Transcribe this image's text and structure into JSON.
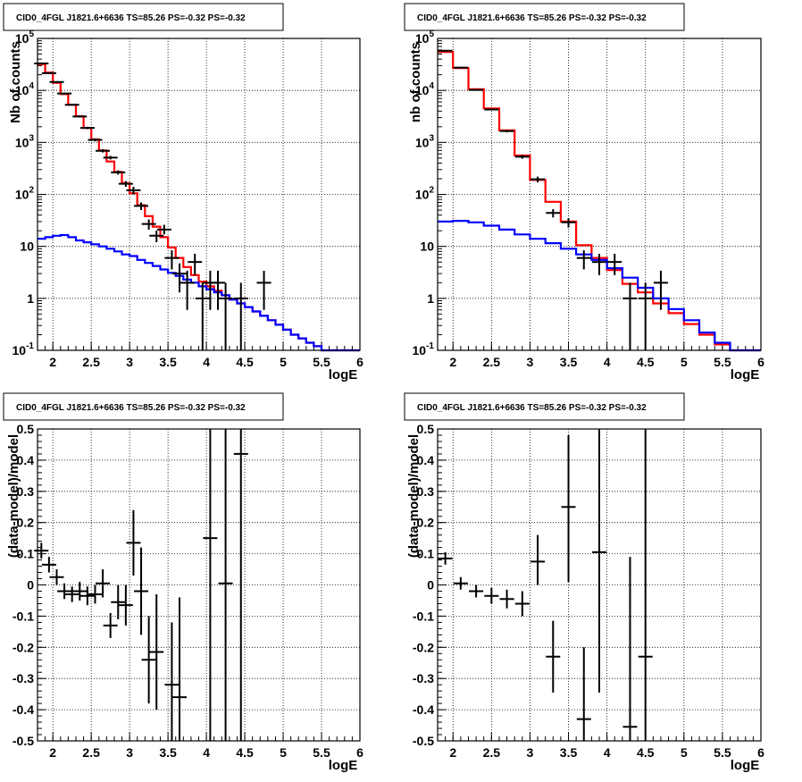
{
  "colors": {
    "data": "#000000",
    "total_model": "#ff0000",
    "component_model": "#0000ff",
    "grid": "#000000",
    "background": "#ffffff"
  },
  "chart_data": [
    {
      "type": "scatter",
      "panel": "top-left",
      "title": "CID0_4FGL J1821.6+6636 TS=85.26 PS=-0.32 PS=-0.32",
      "xlabel": "logE",
      "ylabel": "Nb of counts",
      "xlim": [
        1.8,
        6.0
      ],
      "ylim": [
        0.1,
        100000
      ],
      "yscale": "log",
      "grid": true,
      "x_ticks": [
        "2",
        "2.5",
        "3",
        "3.5",
        "4",
        "4.5",
        "5",
        "5.5",
        "6"
      ],
      "y_ticks": [
        "10^-1",
        "1",
        "10",
        "10^2",
        "10^3",
        "10^4",
        "10^5"
      ],
      "series": [
        {
          "role": "total_model",
          "style": "step",
          "edges": [
            1.8,
            1.9,
            2.0,
            2.1,
            2.2,
            2.3,
            2.4,
            2.5,
            2.6,
            2.7,
            2.8,
            2.9,
            3.0,
            3.1,
            3.2,
            3.3,
            3.4,
            3.5,
            3.6,
            3.7,
            3.8,
            3.9,
            4.0,
            4.1,
            4.2,
            4.3,
            4.4,
            4.5,
            4.6,
            4.7,
            4.8,
            4.9,
            5.0,
            5.1,
            5.2,
            5.3,
            5.4,
            5.5,
            5.6,
            5.7,
            5.8,
            5.9,
            6.0
          ],
          "values": [
            32000,
            22000,
            14000,
            8500,
            5300,
            3200,
            1900,
            1150,
            700,
            430,
            270,
            165,
            105,
            62,
            38,
            24,
            15,
            9.5,
            6.0,
            4.0,
            2.8,
            2.1,
            1.7,
            1.4,
            1.15,
            0.95,
            0.8,
            0.68,
            0.56,
            0.46,
            0.38,
            0.31,
            0.25,
            0.2,
            0.17,
            0.14,
            0.12,
            0.1,
            0.1,
            0.1,
            0.1,
            0.1
          ]
        },
        {
          "role": "component_model",
          "style": "step",
          "edges": [
            1.8,
            1.9,
            2.0,
            2.1,
            2.2,
            2.3,
            2.4,
            2.5,
            2.6,
            2.7,
            2.8,
            2.9,
            3.0,
            3.1,
            3.2,
            3.3,
            3.4,
            3.5,
            3.6,
            3.7,
            3.8,
            3.9,
            4.0,
            4.1,
            4.2,
            4.3,
            4.4,
            4.5,
            4.6,
            4.7,
            4.8,
            4.9,
            5.0,
            5.1,
            5.2,
            5.3,
            5.4,
            5.5,
            5.6,
            5.7,
            5.8,
            5.9,
            6.0
          ],
          "values": [
            14,
            15,
            16,
            16.5,
            15,
            13,
            12,
            11,
            10,
            9,
            8,
            7,
            6.5,
            5.5,
            4.8,
            4.2,
            3.6,
            3.1,
            2.7,
            2.3,
            2.0,
            1.7,
            1.5,
            1.3,
            1.15,
            0.95,
            0.8,
            0.68,
            0.56,
            0.46,
            0.38,
            0.31,
            0.25,
            0.2,
            0.17,
            0.14,
            0.12,
            0.1,
            0.1,
            0.1,
            0.1,
            0.1
          ]
        },
        {
          "role": "data",
          "style": "errorbar",
          "points": [
            {
              "x": 1.85,
              "y": 33000,
              "lo": 32000,
              "hi": 34000
            },
            {
              "x": 1.95,
              "y": 21500,
              "lo": 20800,
              "hi": 22200
            },
            {
              "x": 2.05,
              "y": 14500,
              "lo": 14000,
              "hi": 15000
            },
            {
              "x": 2.15,
              "y": 8700,
              "lo": 8400,
              "hi": 9000
            },
            {
              "x": 2.25,
              "y": 5300,
              "lo": 5100,
              "hi": 5500
            },
            {
              "x": 2.35,
              "y": 3150,
              "lo": 3000,
              "hi": 3300
            },
            {
              "x": 2.45,
              "y": 1900,
              "lo": 1800,
              "hi": 2000
            },
            {
              "x": 2.55,
              "y": 1120,
              "lo": 1050,
              "hi": 1190
            },
            {
              "x": 2.65,
              "y": 690,
              "lo": 640,
              "hi": 740
            },
            {
              "x": 2.75,
              "y": 510,
              "lo": 470,
              "hi": 550
            },
            {
              "x": 2.85,
              "y": 265,
              "lo": 240,
              "hi": 290
            },
            {
              "x": 2.95,
              "y": 160,
              "lo": 140,
              "hi": 180
            },
            {
              "x": 3.05,
              "y": 120,
              "lo": 100,
              "hi": 140
            },
            {
              "x": 3.15,
              "y": 60,
              "lo": 50,
              "hi": 70
            },
            {
              "x": 3.25,
              "y": 27,
              "lo": 21,
              "hi": 33
            },
            {
              "x": 3.35,
              "y": 16,
              "lo": 12,
              "hi": 20
            },
            {
              "x": 3.45,
              "y": 21,
              "lo": 17,
              "hi": 26
            },
            {
              "x": 3.55,
              "y": 6,
              "lo": 3.6,
              "hi": 8.4
            },
            {
              "x": 3.65,
              "y": 3,
              "lo": 1.3,
              "hi": 4.7
            },
            {
              "x": 3.75,
              "y": 2,
              "lo": 0.6,
              "hi": 3.4
            },
            {
              "x": 3.85,
              "y": 5,
              "lo": 2.8,
              "hi": 7.2
            },
            {
              "x": 3.95,
              "y": 1,
              "lo": 0.1,
              "hi": 2.0
            },
            {
              "x": 4.05,
              "y": 2,
              "lo": 0.6,
              "hi": 3.4
            },
            {
              "x": 4.15,
              "y": 2,
              "lo": 0.6,
              "hi": 3.4
            },
            {
              "x": 4.25,
              "y": 1,
              "lo": 0.1,
              "hi": 2.0
            },
            {
              "x": 4.45,
              "y": 1,
              "lo": 0.1,
              "hi": 2.0
            },
            {
              "x": 4.75,
              "y": 2,
              "lo": 0.6,
              "hi": 3.4
            }
          ]
        }
      ]
    },
    {
      "type": "scatter",
      "panel": "top-right",
      "title": "CID0_4FGL J1821.6+6636 TS=85.26 PS=-0.32 PS=-0.32",
      "xlabel": "logE",
      "ylabel": "nb of counts",
      "xlim": [
        1.8,
        6.0
      ],
      "ylim": [
        0.1,
        100000
      ],
      "yscale": "log",
      "grid": true,
      "x_ticks": [
        "2",
        "2.5",
        "3",
        "3.5",
        "4",
        "4.5",
        "5",
        "5.5",
        "6"
      ],
      "y_ticks": [
        "10^-1",
        "1",
        "10",
        "10^2",
        "10^3",
        "10^4",
        "10^5"
      ],
      "series": [
        {
          "role": "total_model",
          "style": "step",
          "edges": [
            1.8,
            2.0,
            2.2,
            2.4,
            2.6,
            2.8,
            3.0,
            3.2,
            3.4,
            3.6,
            3.8,
            4.0,
            4.2,
            4.4,
            4.6,
            4.8,
            5.0,
            5.2,
            5.4,
            5.6,
            5.8,
            6.0
          ],
          "values": [
            55000,
            27000,
            10500,
            4500,
            1700,
            560,
            190,
            72,
            30,
            10.5,
            6.0,
            3.5,
            1.9,
            1.3,
            0.8,
            0.52,
            0.32,
            0.2,
            0.13,
            0.1,
            0.1
          ]
        },
        {
          "role": "component_model",
          "style": "step",
          "edges": [
            1.8,
            2.0,
            2.2,
            2.4,
            2.6,
            2.8,
            3.0,
            3.2,
            3.4,
            3.6,
            3.8,
            4.0,
            4.2,
            4.4,
            4.6,
            4.8,
            5.0,
            5.2,
            5.4,
            5.6,
            5.8,
            6.0
          ],
          "values": [
            30,
            31,
            29,
            25,
            21,
            17,
            14,
            11.5,
            9.0,
            7.0,
            5.5,
            3.8,
            2.5,
            1.6,
            1.0,
            0.62,
            0.38,
            0.22,
            0.14,
            0.1,
            0.1
          ]
        },
        {
          "role": "data",
          "style": "errorbar",
          "points": [
            {
              "x": 1.9,
              "y": 58000,
              "lo": 57000,
              "hi": 59000
            },
            {
              "x": 2.1,
              "y": 27500,
              "lo": 26800,
              "hi": 28200
            },
            {
              "x": 2.3,
              "y": 10200,
              "lo": 9900,
              "hi": 10500
            },
            {
              "x": 2.5,
              "y": 4300,
              "lo": 4150,
              "hi": 4450
            },
            {
              "x": 2.7,
              "y": 1650,
              "lo": 1560,
              "hi": 1740
            },
            {
              "x": 2.9,
              "y": 530,
              "lo": 485,
              "hi": 575
            },
            {
              "x": 3.1,
              "y": 195,
              "lo": 170,
              "hi": 220
            },
            {
              "x": 3.3,
              "y": 44,
              "lo": 36,
              "hi": 52
            },
            {
              "x": 3.5,
              "y": 29,
              "lo": 23,
              "hi": 35
            },
            {
              "x": 3.7,
              "y": 6,
              "lo": 3.6,
              "hi": 8.4
            },
            {
              "x": 3.9,
              "y": 5,
              "lo": 2.8,
              "hi": 7.2
            },
            {
              "x": 4.1,
              "y": 5,
              "lo": 2.8,
              "hi": 7.2
            },
            {
              "x": 4.3,
              "y": 1,
              "lo": 0.1,
              "hi": 2.0
            },
            {
              "x": 4.5,
              "y": 1,
              "lo": 0.1,
              "hi": 2.0
            },
            {
              "x": 4.7,
              "y": 2,
              "lo": 0.6,
              "hi": 3.4
            }
          ]
        }
      ]
    },
    {
      "type": "scatter",
      "panel": "bottom-left",
      "title": "CID0_4FGL J1821.6+6636 TS=85.26 PS=-0.32 PS=-0.32",
      "xlabel": "logE",
      "ylabel": "(data-model)/model",
      "xlim": [
        1.8,
        6.0
      ],
      "ylim": [
        -0.5,
        0.5
      ],
      "yscale": "linear",
      "grid": true,
      "x_ticks": [
        "2",
        "2.5",
        "3",
        "3.5",
        "4",
        "4.5",
        "5",
        "5.5",
        "6"
      ],
      "y_ticks": [
        "-0.5",
        "-0.4",
        "-0.3",
        "-0.2",
        "-0.1",
        "0",
        "0.1",
        "0.2",
        "0.3",
        "0.4",
        "0.5"
      ],
      "series": [
        {
          "role": "data",
          "style": "errorbar",
          "points": [
            {
              "x": 1.85,
              "y": 0.11,
              "lo": 0.085,
              "hi": 0.135
            },
            {
              "x": 1.95,
              "y": 0.065,
              "lo": 0.04,
              "hi": 0.09
            },
            {
              "x": 2.05,
              "y": 0.025,
              "lo": 0.0,
              "hi": 0.05
            },
            {
              "x": 2.15,
              "y": -0.02,
              "lo": -0.045,
              "hi": 0.005
            },
            {
              "x": 2.25,
              "y": -0.03,
              "lo": -0.055,
              "hi": -0.005
            },
            {
              "x": 2.35,
              "y": -0.02,
              "lo": -0.05,
              "hi": 0.01
            },
            {
              "x": 2.45,
              "y": -0.035,
              "lo": -0.065,
              "hi": -0.005
            },
            {
              "x": 2.55,
              "y": -0.03,
              "lo": -0.06,
              "hi": 0.0
            },
            {
              "x": 2.65,
              "y": 0.005,
              "lo": -0.04,
              "hi": 0.05
            },
            {
              "x": 2.75,
              "y": -0.13,
              "lo": -0.17,
              "hi": -0.09
            },
            {
              "x": 2.85,
              "y": -0.055,
              "lo": -0.11,
              "hi": 0.0
            },
            {
              "x": 2.95,
              "y": -0.065,
              "lo": -0.13,
              "hi": 0.0
            },
            {
              "x": 3.05,
              "y": 0.135,
              "lo": 0.03,
              "hi": 0.24
            },
            {
              "x": 3.15,
              "y": -0.02,
              "lo": -0.16,
              "hi": 0.12
            },
            {
              "x": 3.25,
              "y": -0.24,
              "lo": -0.38,
              "hi": -0.1
            },
            {
              "x": 3.35,
              "y": -0.215,
              "lo": -0.4,
              "hi": -0.03
            },
            {
              "x": 3.55,
              "y": -0.32,
              "lo": -0.5,
              "hi": -0.12
            },
            {
              "x": 3.65,
              "y": -0.36,
              "lo": -0.5,
              "hi": -0.04
            },
            {
              "x": 4.05,
              "y": 0.15,
              "lo": -0.5,
              "hi": 0.5
            },
            {
              "x": 4.25,
              "y": 0.005,
              "lo": -0.5,
              "hi": 0.5
            },
            {
              "x": 4.45,
              "y": 0.42,
              "lo": -0.5,
              "hi": 0.5
            }
          ]
        }
      ]
    },
    {
      "type": "scatter",
      "panel": "bottom-right",
      "title": "CID0_4FGL J1821.6+6636 TS=85.26 PS=-0.32 PS=-0.32",
      "xlabel": "logE",
      "ylabel": "(data-model)/model",
      "xlim": [
        1.8,
        6.0
      ],
      "ylim": [
        -0.5,
        0.5
      ],
      "yscale": "linear",
      "grid": true,
      "x_ticks": [
        "2",
        "2.5",
        "3",
        "3.5",
        "4",
        "4.5",
        "5",
        "5.5",
        "6"
      ],
      "y_ticks": [
        "-0.5",
        "-0.4",
        "-0.3",
        "-0.2",
        "-0.1",
        "0",
        "0.1",
        "0.2",
        "0.3",
        "0.4",
        "0.5"
      ],
      "series": [
        {
          "role": "data",
          "style": "errorbar",
          "points": [
            {
              "x": 1.9,
              "y": 0.085,
              "lo": 0.065,
              "hi": 0.105
            },
            {
              "x": 2.1,
              "y": 0.005,
              "lo": -0.015,
              "hi": 0.025
            },
            {
              "x": 2.3,
              "y": -0.02,
              "lo": -0.04,
              "hi": 0.0
            },
            {
              "x": 2.5,
              "y": -0.035,
              "lo": -0.06,
              "hi": -0.01
            },
            {
              "x": 2.7,
              "y": -0.045,
              "lo": -0.075,
              "hi": -0.015
            },
            {
              "x": 2.9,
              "y": -0.06,
              "lo": -0.1,
              "hi": -0.02
            },
            {
              "x": 3.1,
              "y": 0.075,
              "lo": 0.0,
              "hi": 0.16
            },
            {
              "x": 3.3,
              "y": -0.23,
              "lo": -0.345,
              "hi": -0.115
            },
            {
              "x": 3.5,
              "y": 0.25,
              "lo": 0.01,
              "hi": 0.48
            },
            {
              "x": 3.7,
              "y": -0.43,
              "lo": -0.5,
              "hi": -0.2
            },
            {
              "x": 3.9,
              "y": 0.105,
              "lo": -0.345,
              "hi": 0.5
            },
            {
              "x": 4.3,
              "y": -0.455,
              "lo": -0.5,
              "hi": 0.09
            },
            {
              "x": 4.5,
              "y": -0.23,
              "lo": -0.5,
              "hi": 0.5
            }
          ]
        }
      ]
    }
  ]
}
